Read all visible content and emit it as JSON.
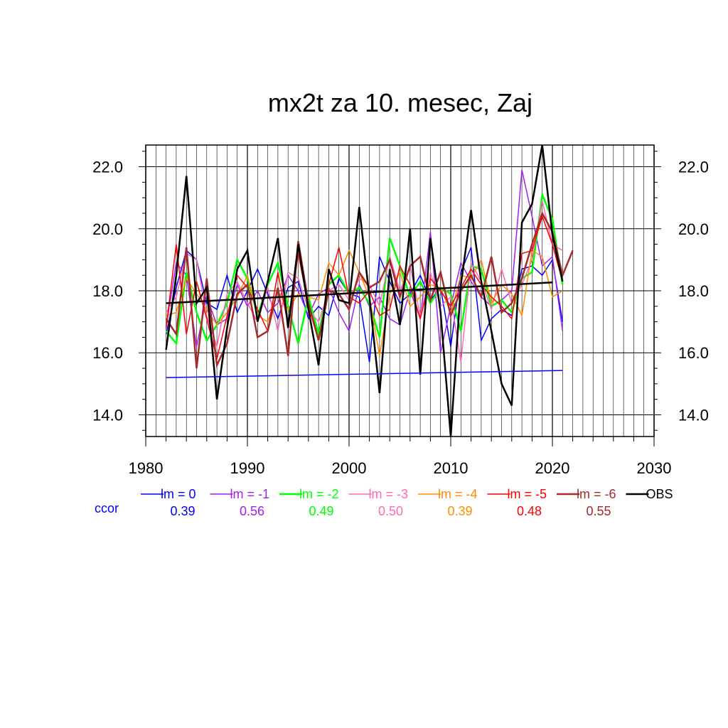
{
  "chart_data": {
    "type": "line",
    "title": "mx2t za 10. mesec, Zaj",
    "xlabel": "",
    "ylabel": "",
    "xlim": [
      1980,
      2030
    ],
    "ylim": [
      13.3,
      22.7
    ],
    "x_ticks": [
      1980,
      1990,
      2000,
      2010,
      2020,
      2030
    ],
    "y_ticks": [
      14.0,
      16.0,
      18.0,
      20.0,
      22.0
    ],
    "y_tick_labels": [
      "14.0",
      "16.0",
      "18.0",
      "20.0",
      "22.0"
    ],
    "grid": true,
    "legend_position": "bottom",
    "ccor_label": "ccor",
    "series": [
      {
        "name": "lm = 0",
        "color": "#0000ff",
        "width": 1.5,
        "ccor": "0.39",
        "x_start": 1982,
        "values": [
          16.6,
          18.1,
          19.3,
          19.0,
          17.6,
          17.4,
          18.5,
          17.3,
          18.0,
          18.7,
          17.9,
          17.1,
          18.1,
          18.3,
          17.1,
          17.5,
          17.2,
          18.4,
          17.9,
          17.8,
          15.7,
          19.1,
          18.3,
          17.6,
          17.9,
          18.5,
          17.7,
          18.1,
          16.2,
          18.6,
          19.4,
          16.4,
          17.1,
          17.4,
          17.2,
          18.7,
          18.8,
          18.5,
          19.0,
          17.0
        ]
      },
      {
        "name": "lm = -1",
        "color": "#a020f0",
        "width": 1.5,
        "ccor": "0.56",
        "x_start": 1982,
        "values": [
          16.8,
          18.9,
          18.5,
          16.2,
          17.8,
          16.9,
          17.1,
          18.2,
          17.5,
          18.0,
          17.3,
          17.6,
          18.5,
          18.0,
          17.2,
          17.9,
          18.1,
          17.3,
          16.7,
          18.2,
          17.5,
          17.8,
          17.1,
          16.9,
          18.0,
          17.1,
          19.9,
          16.0,
          17.5,
          18.9,
          18.3,
          17.8,
          17.5,
          17.7,
          18.0,
          21.9,
          20.4,
          18.8,
          19.1,
          16.7
        ]
      },
      {
        "name": "lm = -2",
        "color": "#00ff00",
        "width": 2.5,
        "ccor": "0.49",
        "x_start": 1982,
        "values": [
          16.7,
          16.3,
          18.6,
          17.3,
          16.4,
          16.9,
          17.6,
          19.0,
          18.4,
          17.2,
          18.2,
          18.9,
          17.5,
          16.3,
          17.8,
          16.6,
          18.2,
          18.5,
          17.9,
          18.1,
          17.6,
          16.5,
          19.7,
          18.8,
          17.8,
          18.3,
          17.6,
          18.1,
          17.9,
          16.7,
          18.8,
          18.7,
          17.5,
          17.7,
          17.3,
          18.4,
          18.6,
          21.1,
          20.3,
          18.2
        ]
      },
      {
        "name": "lm = -3",
        "color": "#ff69b4",
        "width": 1.5,
        "ccor": "0.50",
        "x_start": 1982,
        "values": [
          17.3,
          17.8,
          19.2,
          19.0,
          17.2,
          16.2,
          17.9,
          18.3,
          17.6,
          17.0,
          18.1,
          16.7,
          18.6,
          18.4,
          17.4,
          17.0,
          18.0,
          18.2,
          17.7,
          18.4,
          18.2,
          17.5,
          19.1,
          18.0,
          18.8,
          17.2,
          18.6,
          17.5,
          17.8,
          15.7,
          18.9,
          18.3,
          17.4,
          18.7,
          17.6,
          18.2,
          19.0,
          20.9,
          19.5,
          19.3
        ]
      },
      {
        "name": "lm = -4",
        "color": "#ff8c00",
        "width": 1.5,
        "ccor": "0.39",
        "x_start": 1982,
        "values": [
          17.2,
          17.3,
          18.4,
          17.9,
          17.4,
          16.9,
          17.3,
          17.8,
          18.5,
          17.2,
          17.0,
          18.0,
          17.4,
          17.9,
          17.8,
          17.7,
          18.9,
          18.5,
          19.3,
          18.6,
          17.8,
          15.9,
          17.9,
          18.6,
          17.5,
          17.8,
          18.2,
          18.1,
          17.3,
          18.5,
          18.4,
          19.0,
          17.6,
          18.2,
          17.9,
          17.2,
          19.3,
          19.1,
          17.8,
          18.0
        ]
      },
      {
        "name": "lm = -5",
        "color": "#ff0000",
        "width": 1.5,
        "ccor": "0.48",
        "x_start": 1982,
        "values": [
          16.8,
          19.5,
          16.6,
          18.3,
          17.1,
          15.8,
          17.2,
          18.5,
          18.1,
          17.4,
          16.7,
          18.6,
          16.9,
          19.2,
          17.5,
          16.4,
          18.2,
          19.4,
          17.8,
          17.6,
          18.0,
          17.2,
          17.4,
          18.8,
          18.2,
          17.1,
          18.4,
          18.0,
          17.5,
          18.1,
          18.7,
          18.2,
          17.8,
          17.5,
          17.1,
          19.2,
          19.3,
          20.4,
          19.5,
          18.3
        ]
      },
      {
        "name": "lm = -6",
        "color": "#a52a2a",
        "width": 2.5,
        "ccor": "0.55",
        "x_start": 1982,
        "values": [
          17.1,
          16.6,
          19.4,
          15.5,
          18.4,
          15.6,
          16.3,
          17.9,
          18.2,
          16.5,
          16.7,
          18.1,
          15.9,
          19.6,
          17.6,
          16.4,
          18.0,
          17.9,
          17.4,
          18.6,
          18.1,
          18.3,
          19.0,
          17.8,
          18.8,
          19.1,
          17.7,
          18.6,
          17.2,
          18.0,
          18.5,
          17.8,
          19.1,
          17.3,
          17.6,
          18.4,
          19.5,
          20.5,
          19.9,
          18.5,
          19.3
        ]
      },
      {
        "name": "OBS",
        "color": "#000000",
        "width": 2.5,
        "ccor": "",
        "x_start": 1982,
        "values": [
          16.1,
          18.5,
          21.7,
          17.6,
          18.1,
          14.5,
          16.8,
          18.7,
          19.3,
          17.0,
          18.3,
          19.7,
          16.8,
          19.5,
          17.4,
          15.6,
          18.7,
          17.7,
          17.6,
          20.7,
          17.8,
          14.7,
          18.7,
          16.9,
          20.0,
          15.3,
          19.7,
          17.3,
          13.3,
          18.2,
          20.6,
          18.3,
          16.7,
          15.0,
          14.3,
          20.2,
          20.8,
          22.7,
          19.8,
          18.3
        ]
      }
    ],
    "trend_lines": [
      {
        "name": "lm = 0 trend",
        "color": "#0000ff",
        "width": 1.5,
        "x": [
          1982,
          2021
        ],
        "y": [
          15.2,
          15.43
        ]
      },
      {
        "name": "OBS trend",
        "color": "#000000",
        "width": 2.5,
        "x": [
          1982,
          2020
        ],
        "y": [
          17.6,
          18.27
        ]
      }
    ]
  }
}
